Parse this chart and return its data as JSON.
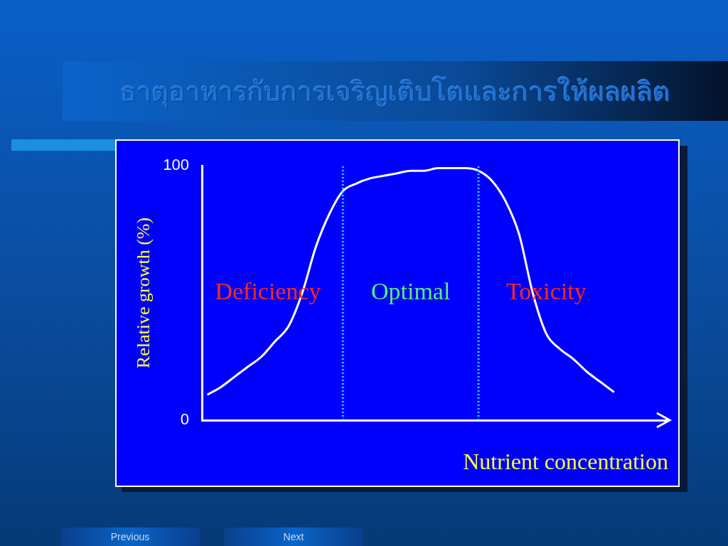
{
  "chart_data": {
    "type": "line",
    "title": "ธาตุอาหารกับการเจริญเติบโตและการให้ผลผลิต",
    "ylabel": "Relative growth (%)",
    "xlabel": "Nutrient concentration",
    "categories": [
      null,
      null,
      null,
      null,
      null,
      null,
      null,
      null,
      null,
      null,
      null,
      null,
      null,
      null,
      null,
      null,
      null,
      null,
      null,
      null,
      null,
      null,
      null,
      null,
      null,
      null,
      null,
      null,
      null,
      null,
      null
    ],
    "series": [
      {
        "color": "#ffffff",
        "values": [
          10,
          13,
          17,
          21,
          25,
          31,
          37,
          50,
          68,
          81,
          90,
          93,
          95,
          96,
          97,
          98,
          98,
          99,
          99,
          99,
          98,
          94,
          86,
          73,
          50,
          34,
          28,
          24,
          19,
          15,
          11
        ]
      }
    ],
    "ylim": [
      0,
      100
    ],
    "yticks": [
      0,
      100
    ],
    "tick_labels": "y",
    "grid": false,
    "legend": false,
    "marker": "none",
    "line_style": "solid",
    "annotations": [
      "Deficiency",
      "Optimal",
      "Toxicity",
      "Previous",
      "Next"
    ]
  }
}
